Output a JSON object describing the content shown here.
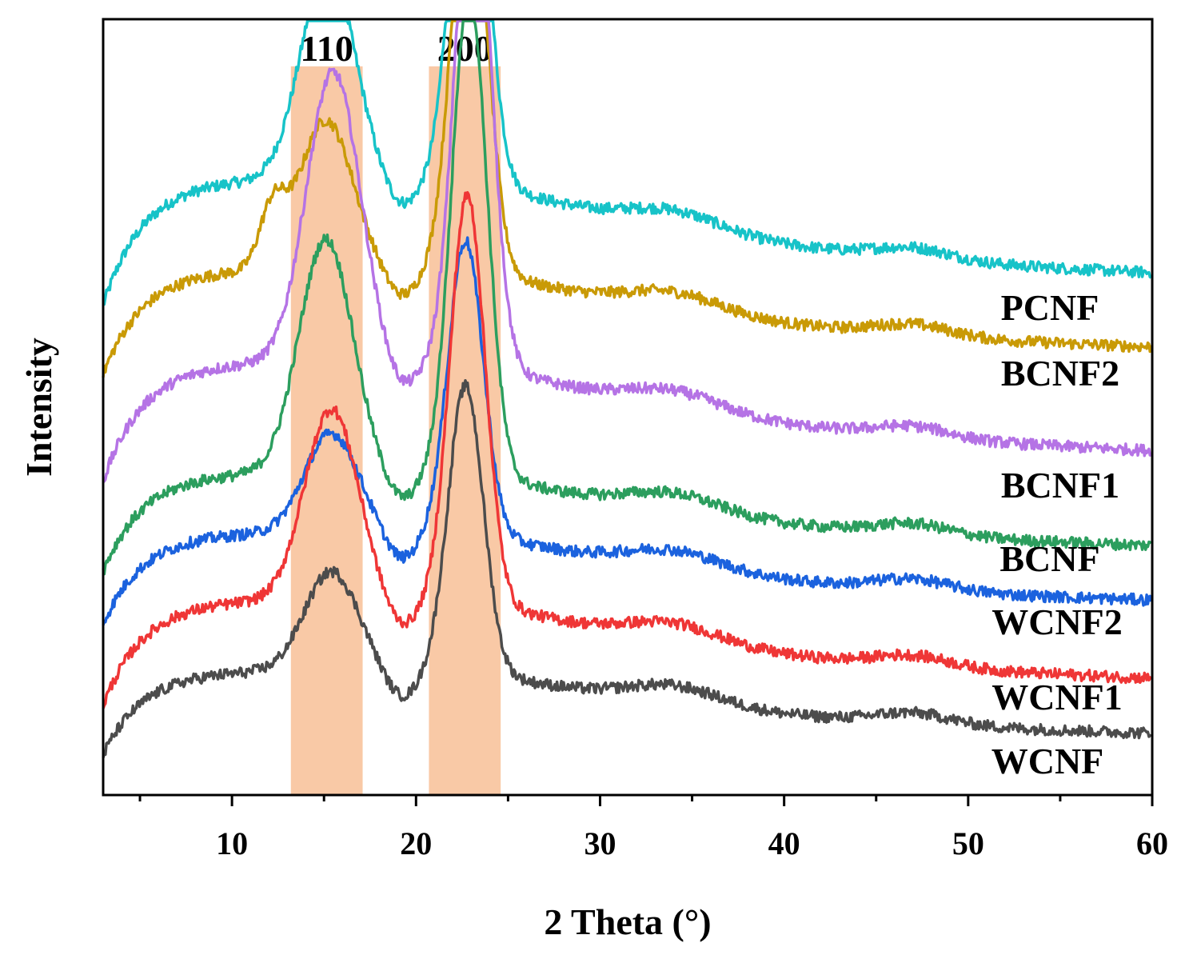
{
  "chart_data": {
    "type": "line",
    "title": "",
    "xlabel": "2 Theta (°)",
    "ylabel": "Intensity",
    "xlim": [
      3,
      60
    ],
    "xticks": [
      10,
      20,
      30,
      40,
      50,
      60
    ],
    "xtick_labels": [
      "10",
      "20",
      "30",
      "40",
      "50",
      "60"
    ],
    "yticks": [],
    "grid": false,
    "legend": "labels placed at right end of each curve",
    "highlight_bands": [
      {
        "label": "110",
        "x_range": [
          13.2,
          17.1
        ],
        "color": "#f9c9a6"
      },
      {
        "label": "200",
        "x_range": [
          20.7,
          24.6
        ],
        "color": "#f9c9a6"
      }
    ],
    "series": [
      {
        "name": "PCNF",
        "color": "#17c3c8",
        "start": 58,
        "end": 20,
        "plateau": 18,
        "peak110": {
          "x": 15.2,
          "h": 30
        },
        "peak200": {
          "x": 22.9,
          "h": 58
        },
        "shoulder": {
          "x": 12.2,
          "h": 0
        }
      },
      {
        "name": "BCNF2",
        "color": "#c99a06",
        "start": 37,
        "end": 0,
        "plateau": 15,
        "peak110": {
          "x": 15.1,
          "h": 21
        },
        "peak200": {
          "x": 22.9,
          "h": 58
        },
        "shoulder": {
          "x": 12.2,
          "h": 8
        }
      },
      {
        "name": "BCNF1",
        "color": "#b573e5",
        "start": 54,
        "end": 14,
        "plateau": 17,
        "peak110": {
          "x": 15.5,
          "h": 41
        },
        "peak200": {
          "x": 23.1,
          "h": 73
        },
        "shoulder": {
          "x": 12.2,
          "h": 0
        }
      },
      {
        "name": "BCNF",
        "color": "#2c9e5e",
        "start": 45,
        "end": 10,
        "plateau": 14,
        "peak110": {
          "x": 15.1,
          "h": 33
        },
        "peak200": {
          "x": 22.9,
          "h": 68
        },
        "shoulder": {
          "x": 12.2,
          "h": 0
        }
      },
      {
        "name": "WCNF2",
        "color": "#1b62de",
        "start": 30,
        "end": 0,
        "plateau": 13,
        "peak110": {
          "x": 15.4,
          "h": 14
        },
        "peak200": {
          "x": 22.7,
          "h": 41
        },
        "shoulder": {
          "x": 12.2,
          "h": 0
        }
      },
      {
        "name": "WCNF1",
        "color": "#ef3636",
        "start": 28,
        "end": 0,
        "plateau": 15,
        "peak110": {
          "x": 15.4,
          "h": 27
        },
        "peak200": {
          "x": 22.8,
          "h": 57
        },
        "shoulder": {
          "x": 12.2,
          "h": 0
        }
      },
      {
        "name": "WCNF",
        "color": "#4c4c4c",
        "start": 10,
        "end": 0,
        "plateau": 12,
        "peak110": {
          "x": 15.4,
          "h": 14
        },
        "peak200": {
          "x": 22.7,
          "h": 40
        },
        "shoulder": {
          "x": 12.2,
          "h": 0
        }
      }
    ]
  }
}
